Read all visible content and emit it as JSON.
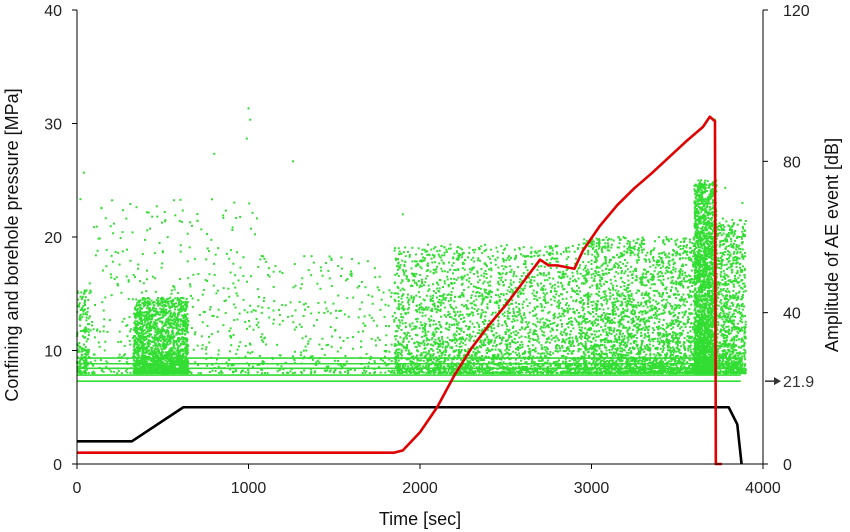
{
  "chart_data": {
    "type": "scatter",
    "title": "",
    "xlabel": "Time [sec]",
    "ylabel_left": "Confining and borehole pressure [MPa]",
    "ylabel_right": "Amplitude of AE event [dB]",
    "xlim": [
      0,
      4000
    ],
    "ylim_left": [
      0,
      40
    ],
    "ylim_right": [
      0,
      120
    ],
    "x_ticks": [
      "0",
      "1000",
      "2000",
      "3000",
      "4000"
    ],
    "y_left_ticks": [
      "0",
      "10",
      "20",
      "30",
      "40"
    ],
    "y_right_ticks": [
      "0",
      "40",
      "80",
      "120"
    ],
    "grid": false,
    "legend": "none",
    "annotation": {
      "text": "21.9",
      "value": 21.9,
      "axis": "right"
    },
    "colors": {
      "confining": "#000000",
      "borehole": "#e00000",
      "ae": "#33dd33"
    },
    "series": [
      {
        "kind": "line",
        "axis": "left",
        "color": "#000000",
        "x": [
          0,
          320,
          620,
          3750,
          3800,
          3850,
          3875
        ],
        "y": [
          2,
          2,
          5,
          5,
          5,
          3.5,
          0
        ]
      },
      {
        "kind": "line",
        "axis": "left",
        "color": "#e00000",
        "x": [
          0,
          1850,
          1900,
          2000,
          2100,
          2200,
          2300,
          2400,
          2500,
          2600,
          2700,
          2750,
          2800,
          2900,
          2950,
          3050,
          3150,
          3250,
          3350,
          3450,
          3550,
          3650,
          3690,
          3720,
          3725,
          3760
        ],
        "y": [
          1,
          1,
          1.2,
          2.8,
          5,
          7.8,
          10.2,
          12.2,
          14,
          16,
          18,
          17.5,
          17.5,
          17.2,
          18.8,
          21,
          22.8,
          24.3,
          25.6,
          27,
          28.4,
          29.7,
          30.6,
          30.2,
          0,
          0
        ]
      },
      {
        "kind": "ae_scatter",
        "axis": "right",
        "color": "#33dd33",
        "floor_levels": [
          21.9,
          23.5,
          25.3,
          26.5,
          28
        ]
      }
    ],
    "ae_clusters": [
      {
        "x_from": 0,
        "x_to": 70,
        "count": 180,
        "amp_min": 24,
        "amp_max": 46
      },
      {
        "x_from": 330,
        "x_to": 650,
        "count": 1800,
        "amp_min": 24,
        "amp_max": 44
      },
      {
        "x_from": 70,
        "x_to": 1050,
        "count": 450,
        "amp_min": 24,
        "amp_max": 70
      },
      {
        "x_from": 1050,
        "x_to": 1850,
        "count": 320,
        "amp_min": 24,
        "amp_max": 55
      },
      {
        "x_from": 1850,
        "x_to": 2950,
        "count": 2600,
        "amp_min": 24,
        "amp_max": 58
      },
      {
        "x_from": 2950,
        "x_to": 3600,
        "count": 2400,
        "amp_min": 24,
        "amp_max": 60
      },
      {
        "x_from": 3600,
        "x_to": 3730,
        "count": 2600,
        "amp_min": 24,
        "amp_max": 75
      },
      {
        "x_from": 3730,
        "x_to": 3900,
        "count": 900,
        "amp_min": 24,
        "amp_max": 65
      }
    ],
    "ae_peaks": [
      {
        "x": 1000,
        "amp": 94
      },
      {
        "x": 1010,
        "amp": 91
      },
      {
        "x": 990,
        "amp": 86
      },
      {
        "x": 40,
        "amp": 77
      },
      {
        "x": 20,
        "amp": 70
      },
      {
        "x": 1260,
        "amp": 80
      },
      {
        "x": 800,
        "amp": 82
      },
      {
        "x": 1900,
        "amp": 66
      },
      {
        "x": 3720,
        "amp": 91
      },
      {
        "x": 3780,
        "amp": 73
      },
      {
        "x": 3880,
        "amp": 69
      }
    ]
  }
}
